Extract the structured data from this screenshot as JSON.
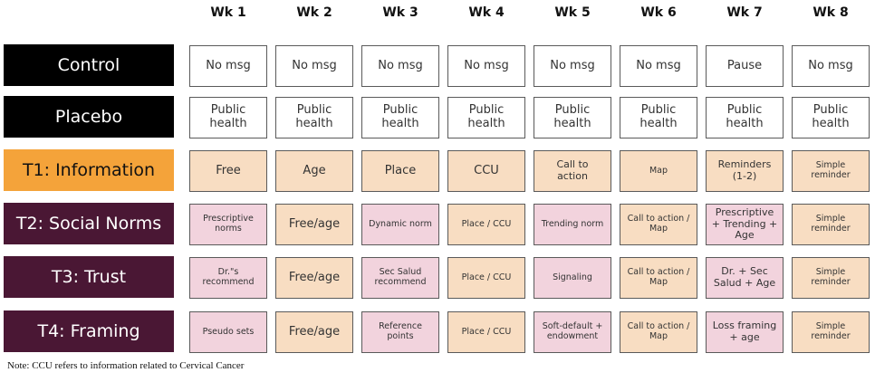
{
  "weeks": [
    "Wk 1",
    "Wk 2",
    "Wk 3",
    "Wk 4",
    "Wk 5",
    "Wk 6",
    "Wk 7",
    "Wk 8"
  ],
  "colors": {
    "white": "#ffffff",
    "info": "#f8ddc2",
    "social": "#f2d3dd",
    "control_label_bg": "#000000",
    "t1_label_bg": "#f4a33a",
    "treatment_label_bg": "#4a1734"
  },
  "rows": [
    {
      "label": "Control",
      "label_style": "dark",
      "cells": [
        {
          "text": "No msg",
          "fill": "white",
          "size": "l"
        },
        {
          "text": "No msg",
          "fill": "white",
          "size": "l"
        },
        {
          "text": "No msg",
          "fill": "white",
          "size": "l"
        },
        {
          "text": "No msg",
          "fill": "white",
          "size": "l"
        },
        {
          "text": "No msg",
          "fill": "white",
          "size": "l"
        },
        {
          "text": "No msg",
          "fill": "white",
          "size": "l"
        },
        {
          "text": "Pause",
          "fill": "white",
          "size": "l"
        },
        {
          "text": "No msg",
          "fill": "white",
          "size": "l"
        }
      ]
    },
    {
      "label": "Placebo",
      "label_style": "dark",
      "cells": [
        {
          "text": "Public\nhealth",
          "fill": "white",
          "size": "l"
        },
        {
          "text": "Public\nhealth",
          "fill": "white",
          "size": "l"
        },
        {
          "text": "Public\nhealth",
          "fill": "white",
          "size": "l"
        },
        {
          "text": "Public\nhealth",
          "fill": "white",
          "size": "l"
        },
        {
          "text": "Public\nhealth",
          "fill": "white",
          "size": "l"
        },
        {
          "text": "Public\nhealth",
          "fill": "white",
          "size": "l"
        },
        {
          "text": "Public\nhealth",
          "fill": "white",
          "size": "l"
        },
        {
          "text": "Public\nhealth",
          "fill": "white",
          "size": "l"
        }
      ]
    },
    {
      "label": "T1: Information",
      "label_style": "orange",
      "cells": [
        {
          "text": "Free",
          "fill": "info",
          "size": "l"
        },
        {
          "text": "Age",
          "fill": "info",
          "size": "l"
        },
        {
          "text": "Place",
          "fill": "info",
          "size": "l"
        },
        {
          "text": "CCU",
          "fill": "info",
          "size": "l"
        },
        {
          "text": "Call to\naction",
          "fill": "info",
          "size": "m"
        },
        {
          "text": "Map",
          "fill": "info",
          "size": "s"
        },
        {
          "text": "Reminders\n(1-2)",
          "fill": "info",
          "size": "m"
        },
        {
          "text": "Simple\nreminder",
          "fill": "info",
          "size": "s"
        }
      ]
    },
    {
      "label": "T2: Social Norms",
      "label_style": "purple",
      "cells": [
        {
          "text": "Prescriptive\nnorms",
          "fill": "social",
          "size": "s"
        },
        {
          "text": "Free/age",
          "fill": "info",
          "size": "l"
        },
        {
          "text": "Dynamic norm",
          "fill": "social",
          "size": "s"
        },
        {
          "text": "Place / CCU",
          "fill": "info",
          "size": "s"
        },
        {
          "text": "Trending norm",
          "fill": "social",
          "size": "s"
        },
        {
          "text": "Call to action /\nMap",
          "fill": "info",
          "size": "s"
        },
        {
          "text": "Prescriptive\n+ Trending +\nAge",
          "fill": "social",
          "size": "m"
        },
        {
          "text": "Simple\nreminder",
          "fill": "info",
          "size": "s"
        }
      ]
    },
    {
      "label": "T3: Trust",
      "label_style": "purple",
      "cells": [
        {
          "text": "Dr.\"s\nrecommend",
          "fill": "social",
          "size": "s"
        },
        {
          "text": "Free/age",
          "fill": "info",
          "size": "l"
        },
        {
          "text": "Sec Salud\nrecommend",
          "fill": "social",
          "size": "s"
        },
        {
          "text": "Place / CCU",
          "fill": "info",
          "size": "s"
        },
        {
          "text": "Signaling",
          "fill": "social",
          "size": "s"
        },
        {
          "text": "Call to action /\nMap",
          "fill": "info",
          "size": "s"
        },
        {
          "text": "Dr. + Sec\nSalud + Age",
          "fill": "social",
          "size": "m"
        },
        {
          "text": "Simple\nreminder",
          "fill": "info",
          "size": "s"
        }
      ]
    },
    {
      "label": "T4: Framing",
      "label_style": "purple",
      "cells": [
        {
          "text": "Pseudo sets",
          "fill": "social",
          "size": "s"
        },
        {
          "text": "Free/age",
          "fill": "info",
          "size": "l"
        },
        {
          "text": "Reference\npoints",
          "fill": "social",
          "size": "s"
        },
        {
          "text": "Place / CCU",
          "fill": "info",
          "size": "s"
        },
        {
          "text": "Soft-default +\nendowment",
          "fill": "social",
          "size": "s"
        },
        {
          "text": "Call to action /\nMap",
          "fill": "info",
          "size": "s"
        },
        {
          "text": "Loss framing\n+ age",
          "fill": "social",
          "size": "m"
        },
        {
          "text": "Simple\nreminder",
          "fill": "info",
          "size": "s"
        }
      ]
    }
  ],
  "note": "Note: CCU refers to information related to Cervical Cancer"
}
